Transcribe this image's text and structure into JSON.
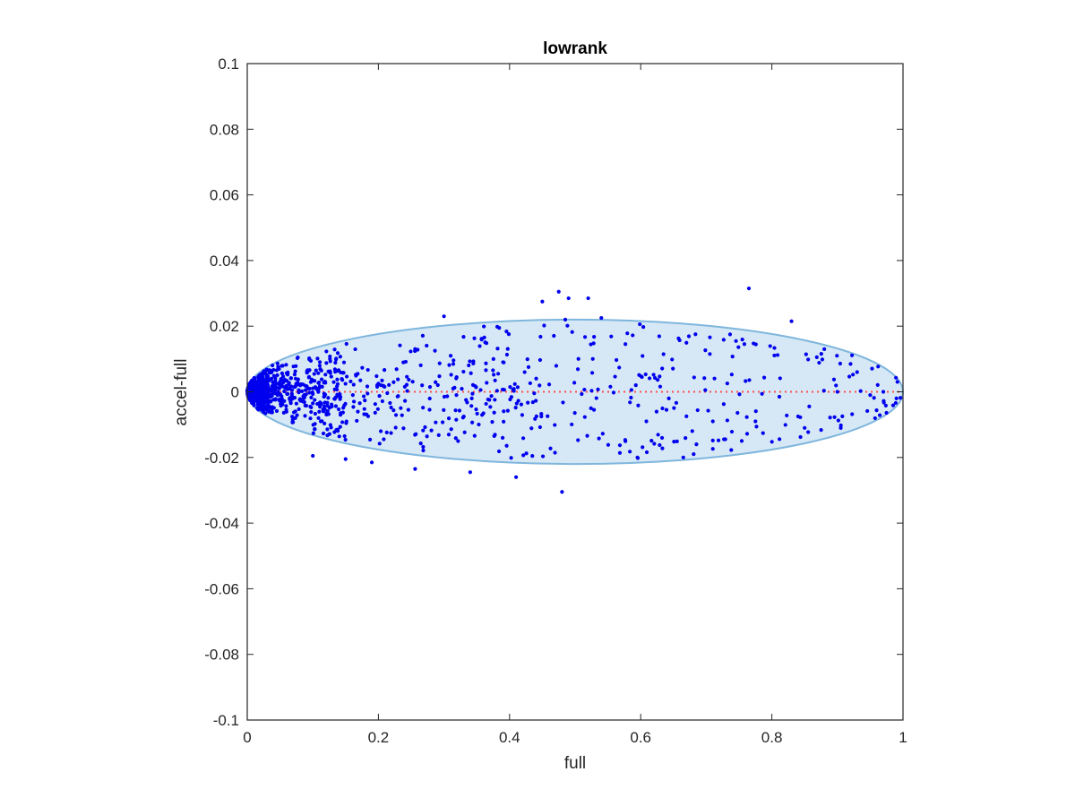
{
  "chart_data": {
    "type": "scatter",
    "title": "lowrank",
    "xlabel": "full",
    "ylabel": "accel-full",
    "xlim": [
      0,
      1
    ],
    "ylim": [
      -0.1,
      0.1
    ],
    "xticks": [
      "0",
      "0.2",
      "0.4",
      "0.6",
      "0.8",
      "1"
    ],
    "yticks": [
      "0.1",
      "0.08",
      "0.06",
      "0.04",
      "0.02",
      "0",
      "-0.02",
      "-0.04",
      "-0.06",
      "-0.08",
      "-0.1"
    ],
    "xtick_values": [
      0,
      0.2,
      0.4,
      0.6,
      0.8,
      1
    ],
    "ytick_values": [
      0.1,
      0.08,
      0.06,
      0.04,
      0.02,
      0,
      -0.02,
      -0.04,
      -0.06,
      -0.08,
      -0.1
    ],
    "grid": false,
    "box": true,
    "colors": {
      "points": "#0000ee",
      "ellipse_fill": "#d6e8f5",
      "ellipse_edge": "#7fb6dd",
      "reference_line": "#ff4d4d",
      "axes": "#262626"
    },
    "ellipse": {
      "cx": 0.5,
      "cy": 0,
      "rx": 0.5,
      "ry": 0.022
    },
    "reference_line": {
      "y": 0,
      "style": "dotted"
    },
    "outliers": [
      [
        0.475,
        0.0305
      ],
      [
        0.49,
        0.0285
      ],
      [
        0.52,
        0.0285
      ],
      [
        0.45,
        0.0275
      ],
      [
        0.765,
        0.0315
      ],
      [
        0.3,
        0.023
      ],
      [
        0.83,
        0.0215
      ],
      [
        0.54,
        0.0225
      ],
      [
        0.485,
        0.022
      ],
      [
        0.48,
        -0.0305
      ],
      [
        0.41,
        -0.026
      ],
      [
        0.34,
        -0.0245
      ],
      [
        0.256,
        -0.0235
      ],
      [
        0.595,
        -0.02
      ],
      [
        0.665,
        -0.02
      ],
      [
        0.1,
        -0.0195
      ],
      [
        0.19,
        -0.0215
      ],
      [
        0.15,
        -0.0205
      ],
      [
        0.84,
        -0.0075
      ],
      [
        0.85,
        -0.011
      ],
      [
        0.685,
        -0.016
      ],
      [
        0.71,
        -0.009
      ],
      [
        0.775,
        -0.009
      ],
      [
        0.9,
        0
      ],
      [
        0.95,
        -0.001
      ],
      [
        0.97,
        0
      ],
      [
        0.99,
        -0.002
      ],
      [
        0.93,
        0.006
      ],
      [
        0.92,
        0.0085
      ],
      [
        0.88,
        0.013
      ]
    ],
    "n_points": 1100
  }
}
